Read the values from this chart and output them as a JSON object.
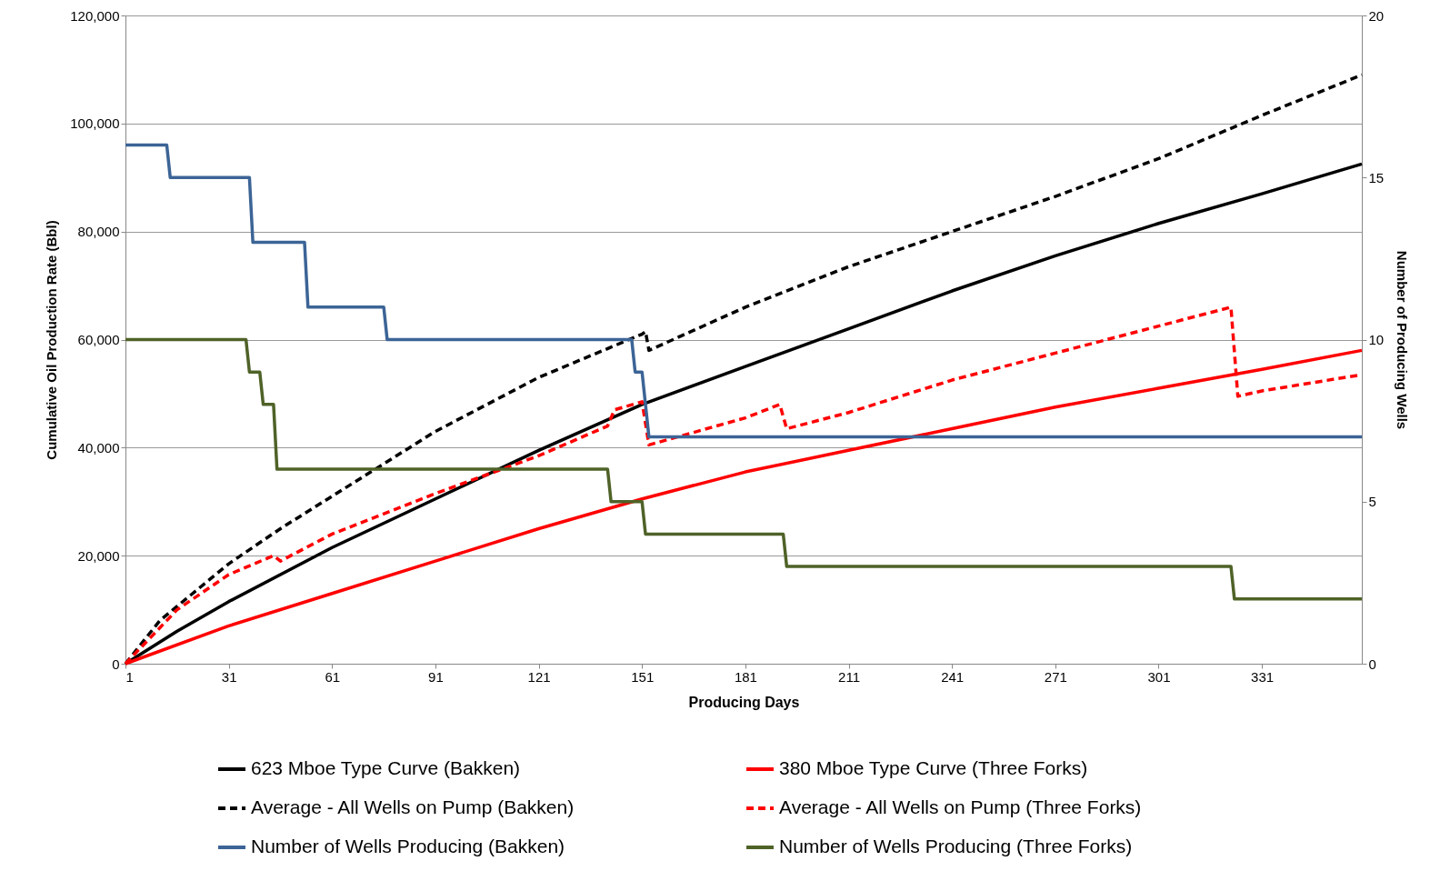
{
  "chart_data": {
    "type": "line",
    "xlabel": "Producing Days",
    "ylabel": "Cumulative Oil Production Rate (Bbl)",
    "y2label": "Number of Producing Wells",
    "xlim": [
      1,
      360
    ],
    "xticks": [
      1,
      31,
      61,
      91,
      121,
      151,
      181,
      211,
      241,
      271,
      301,
      331
    ],
    "ylim": [
      0,
      120000
    ],
    "yticks": [
      0,
      {
        "value": 20000,
        "label": "20,000"
      },
      {
        "value": 40000,
        "label": "40,000"
      },
      {
        "value": 60000,
        "label": "60,000"
      },
      {
        "value": 80000,
        "label": "80,000"
      },
      {
        "value": 100000,
        "label": "100,000"
      },
      {
        "value": 120000,
        "label": "120,000"
      }
    ],
    "y2lim": [
      0,
      20
    ],
    "y2ticks": [
      0,
      5,
      10,
      15,
      20
    ],
    "grid": "y",
    "legend": "bottom",
    "series": [
      {
        "name": "623 Mboe Type Curve (Bakken)",
        "color": "#000000",
        "line_style": "solid",
        "x": [
          1,
          16,
          31,
          61,
          91,
          121,
          151,
          181,
          211,
          241,
          271,
          301,
          331,
          360
        ],
        "values": [
          0,
          6000,
          11500,
          21500,
          30500,
          39500,
          48000,
          55000,
          62000,
          69000,
          75500,
          81500,
          87000,
          92500
        ]
      },
      {
        "name": "380 Mboe Type Curve (Three Forks)",
        "color": "#ff0000",
        "line_style": "solid",
        "x": [
          1,
          31,
          61,
          91,
          121,
          151,
          181,
          211,
          241,
          271,
          301,
          331,
          360
        ],
        "values": [
          0,
          7000,
          13000,
          19000,
          25000,
          30500,
          35500,
          39500,
          43500,
          47500,
          51000,
          54500,
          58000
        ]
      },
      {
        "name": "Average - All Wells on Pump (Bakken)",
        "color": "#000000",
        "line_style": "dashed",
        "x": [
          1,
          11,
          31,
          46,
          61,
          91,
          121,
          151,
          152,
          153,
          181,
          211,
          241,
          271,
          301,
          331,
          360
        ],
        "values": [
          0,
          8000,
          18500,
          25000,
          31000,
          43000,
          53000,
          61000,
          61500,
          58000,
          66000,
          73500,
          80000,
          86500,
          93500,
          101500,
          109000
        ]
      },
      {
        "name": "Average - All Wells on Pump (Three Forks)",
        "color": "#ff0000",
        "line_style": "dashed",
        "x": [
          1,
          16,
          31,
          44,
          46,
          61,
          91,
          121,
          141,
          143,
          151,
          153,
          181,
          191,
          193,
          211,
          241,
          271,
          301,
          322,
          324,
          331,
          360
        ],
        "values": [
          0,
          10000,
          16500,
          20000,
          19000,
          24000,
          31500,
          38500,
          44000,
          47000,
          48500,
          40500,
          45500,
          48000,
          43500,
          46500,
          52500,
          57500,
          62500,
          66000,
          49500,
          50500,
          53500
        ]
      },
      {
        "name": "Number of Wells Producing (Bakken)",
        "color": "#3c6496",
        "line_style": "solid",
        "axis": "y2",
        "x": [
          1,
          13,
          14,
          37,
          38,
          53,
          54,
          76,
          77,
          148,
          149,
          151,
          153,
          360
        ],
        "values": [
          16,
          16,
          15,
          15,
          13,
          13,
          11,
          11,
          10,
          10,
          9,
          9,
          7,
          7
        ]
      },
      {
        "name": "Number of Wells Producing (Three Forks)",
        "color": "#4f6228",
        "line_style": "solid",
        "axis": "y2",
        "x": [
          1,
          36,
          37,
          40,
          41,
          44,
          45,
          141,
          142,
          151,
          152,
          192,
          193,
          322,
          323,
          360
        ],
        "values": [
          10,
          10,
          9,
          9,
          8,
          8,
          6,
          6,
          5,
          5,
          4,
          4,
          3,
          3,
          2,
          2
        ]
      }
    ]
  }
}
